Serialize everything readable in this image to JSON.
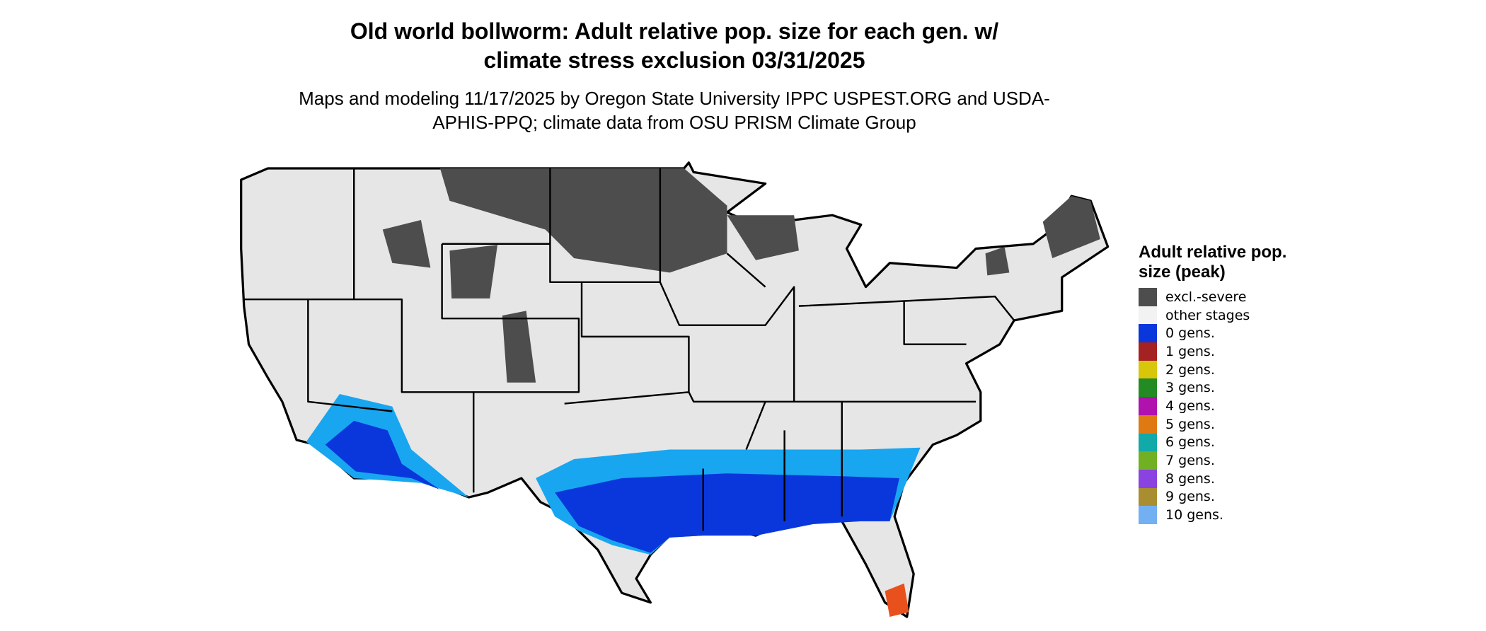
{
  "title": "Old world bollworm: Adult relative pop. size for each gen. w/ climate stress exclusion 03/31/2025",
  "subtitle": "Maps and modeling 11/17/2025 by Oregon State University IPPC USPEST.ORG and USDA-APHIS-PPQ; climate data from OSU PRISM Climate Group",
  "legend": {
    "title": "Adult relative pop. size (peak)",
    "items": [
      {
        "label": "excl.-severe",
        "color": "#4d4d4d"
      },
      {
        "label": "other stages",
        "color": "#f2f2f2"
      },
      {
        "label": "0 gens.",
        "color": "#0a37dc"
      },
      {
        "label": "1 gens.",
        "color": "#a52222"
      },
      {
        "label": "2 gens.",
        "color": "#d8c60a"
      },
      {
        "label": "3 gens.",
        "color": "#238b23"
      },
      {
        "label": "4 gens.",
        "color": "#b012ae"
      },
      {
        "label": "5 gens.",
        "color": "#df7a12"
      },
      {
        "label": "6 gens.",
        "color": "#12a9a9"
      },
      {
        "label": "7 gens.",
        "color": "#70b022"
      },
      {
        "label": "8 gens.",
        "color": "#8a42e0"
      },
      {
        "label": "9 gens.",
        "color": "#a88e30"
      },
      {
        "label": "10 gens.",
        "color": "#72b0f2"
      }
    ]
  }
}
